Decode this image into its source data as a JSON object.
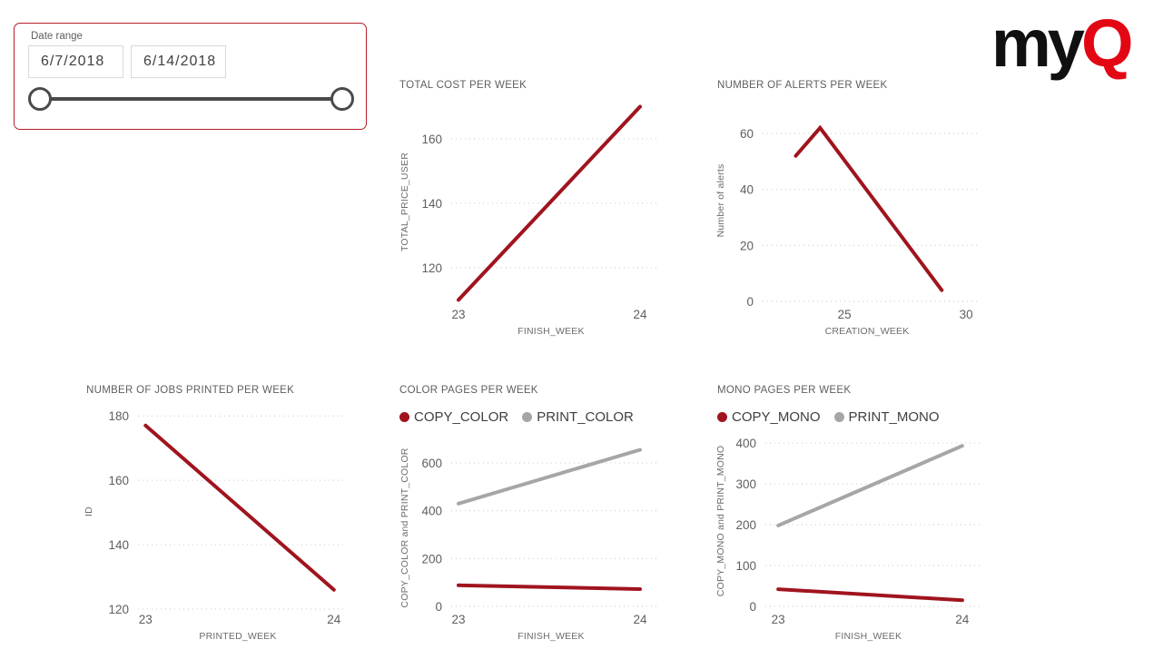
{
  "logo": {
    "text_black": "my",
    "text_red": "Q"
  },
  "colors": {
    "brand_red": "#e30613",
    "series_red": "#a0141e",
    "series_gray": "#a6a6a6",
    "slicer_border": "#b21e28"
  },
  "slicer": {
    "label": "Date range",
    "start_date": "6/7/2018",
    "end_date": "6/14/2018"
  },
  "chart_data": [
    {
      "id": "total-cost",
      "type": "line",
      "title": "TOTAL COST PER WEEK",
      "xlabel": "FINISH_WEEK",
      "ylabel": "TOTAL_PRICE_USER",
      "x_ticks": [
        23,
        24
      ],
      "y_ticks": [
        120,
        140,
        160
      ],
      "x_range": [
        22.96,
        24.06
      ],
      "y_range": [
        108.7,
        172.1
      ],
      "grid": "dotted-horizontal",
      "legend_visible": false,
      "series": [
        {
          "color": "#a0141e",
          "points": [
            [
              23,
              110
            ],
            [
              24,
              170
            ]
          ]
        }
      ]
    },
    {
      "id": "alerts",
      "type": "line",
      "title": "NUMBER OF ALERTS PER WEEK",
      "xlabel": "CREATION_WEEK",
      "ylabel": "Number of alerts",
      "x_ticks": [
        25,
        30
      ],
      "y_ticks": [
        0,
        20,
        40,
        60
      ],
      "x_range": [
        21.64,
        30.22
      ],
      "y_range": [
        0,
        72
      ],
      "grid": "dotted-horizontal",
      "legend_visible": false,
      "series": [
        {
          "color": "#a0141e",
          "points": [
            [
              23,
              52
            ],
            [
              24,
              62
            ],
            [
              29,
              4
            ]
          ]
        }
      ]
    },
    {
      "id": "jobs",
      "type": "line",
      "title": "NUMBER OF JOBS PRINTED PER WEEK",
      "xlabel": "PRINTED_WEEK",
      "ylabel": "ID",
      "x_ticks": [
        23,
        24
      ],
      "y_ticks": [
        120,
        140,
        160,
        180
      ],
      "x_range": [
        22.96,
        24.02
      ],
      "y_range": [
        118.3,
        182.3
      ],
      "grid": "dotted-horizontal",
      "legend_visible": false,
      "series": [
        {
          "color": "#a0141e",
          "points": [
            [
              23,
              177
            ],
            [
              24,
              126
            ]
          ]
        }
      ]
    },
    {
      "id": "color-pages",
      "type": "line",
      "title": "COLOR PAGES PER WEEK",
      "xlabel": "FINISH_WEEK",
      "ylabel": "COPY_COLOR and PRINT_COLOR",
      "x_ticks": [
        23,
        24
      ],
      "y_ticks": [
        0,
        200,
        400,
        600
      ],
      "x_range": [
        22.96,
        24.06
      ],
      "y_range": [
        0,
        657
      ],
      "grid": "dotted-horizontal",
      "legend_visible": true,
      "series": [
        {
          "name": "COPY_COLOR",
          "color": "#a0141e",
          "points": [
            [
              23,
              88
            ],
            [
              24,
              72
            ]
          ]
        },
        {
          "name": "PRINT_COLOR",
          "color": "#a6a6a6",
          "points": [
            [
              23,
              430
            ],
            [
              24,
              655
            ]
          ]
        }
      ]
    },
    {
      "id": "mono-pages",
      "type": "line",
      "title": "MONO PAGES PER WEEK",
      "xlabel": "FINISH_WEEK",
      "ylabel": "COPY_MONO and PRINT_MONO",
      "x_ticks": [
        23,
        24
      ],
      "y_ticks": [
        0,
        100,
        200,
        300,
        400
      ],
      "x_range": [
        22.93,
        24.05
      ],
      "y_range": [
        0,
        418
      ],
      "grid": "dotted-horizontal",
      "legend_visible": true,
      "series": [
        {
          "name": "COPY_MONO",
          "color": "#a0141e",
          "points": [
            [
              23,
              42
            ],
            [
              24,
              15
            ]
          ]
        },
        {
          "name": "PRINT_MONO",
          "color": "#a6a6a6",
          "points": [
            [
              23,
              198
            ],
            [
              24,
              393
            ]
          ]
        }
      ]
    }
  ]
}
